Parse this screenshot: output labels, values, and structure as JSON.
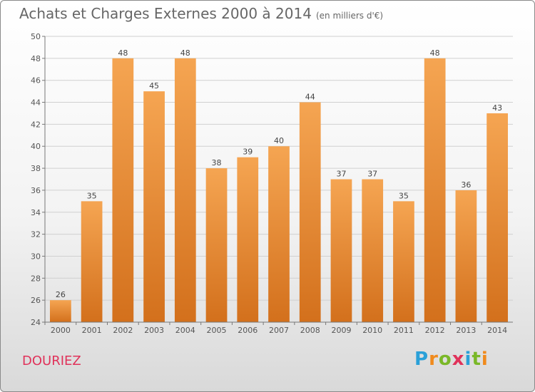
{
  "title": "Achats et Charges Externes 2000 à 2014",
  "unit": "(en milliers d'€)",
  "commune": "DOURIEZ",
  "logo": {
    "text": "Proxiti",
    "letters": [
      "P",
      "r",
      "o",
      "x",
      "i",
      "t",
      "i"
    ],
    "colors": [
      "#2aa0d8",
      "#f08a1c",
      "#7ab828",
      "#e0325a",
      "#2aa0d8",
      "#7ab828",
      "#f08a1c"
    ]
  },
  "colors": {
    "bar_top": "#f5a552",
    "bar_bottom": "#d3701c",
    "grid": "#d0d0d0",
    "axis": "#777777"
  },
  "chart_data": {
    "type": "bar",
    "categories": [
      "2000",
      "2001",
      "2002",
      "2003",
      "2004",
      "2005",
      "2006",
      "2007",
      "2008",
      "2009",
      "2010",
      "2011",
      "2012",
      "2013",
      "2014"
    ],
    "values": [
      26,
      35,
      48,
      45,
      48,
      38,
      39,
      40,
      44,
      37,
      37,
      35,
      48,
      36,
      43
    ],
    "ylim": [
      24,
      50
    ],
    "yticks": [
      24,
      26,
      28,
      30,
      32,
      34,
      36,
      38,
      40,
      42,
      44,
      46,
      48,
      50
    ],
    "grid": true
  }
}
